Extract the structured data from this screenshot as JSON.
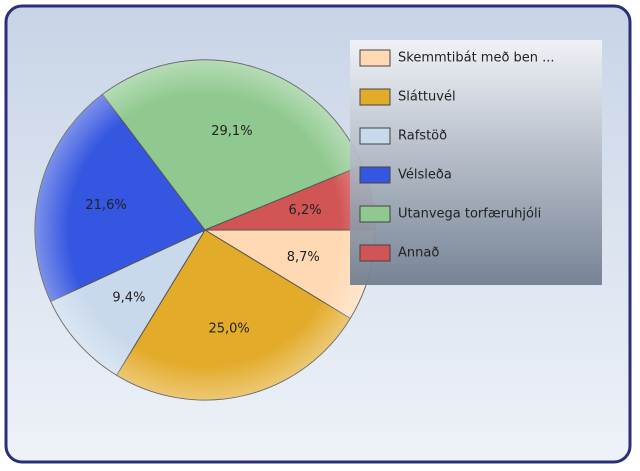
{
  "chart_data": {
    "type": "pie",
    "categories": [
      "Skemmtibát  með ben ...",
      "Sláttuvél",
      "Rafstöð",
      "Vélsleða",
      "Utanvega torfæruhjóli",
      "Annað"
    ],
    "values": [
      8.7,
      25.0,
      9.4,
      21.6,
      29.1,
      6.2
    ],
    "value_labels": [
      "8,7%",
      "25,0%",
      "9,4%",
      "21,6%",
      "29,1%",
      "6,2%"
    ],
    "colors": [
      "#ffd9b3",
      "#e3ab2a",
      "#c9d9ec",
      "#3556e0",
      "#8fc98f",
      "#d25555"
    ]
  }
}
